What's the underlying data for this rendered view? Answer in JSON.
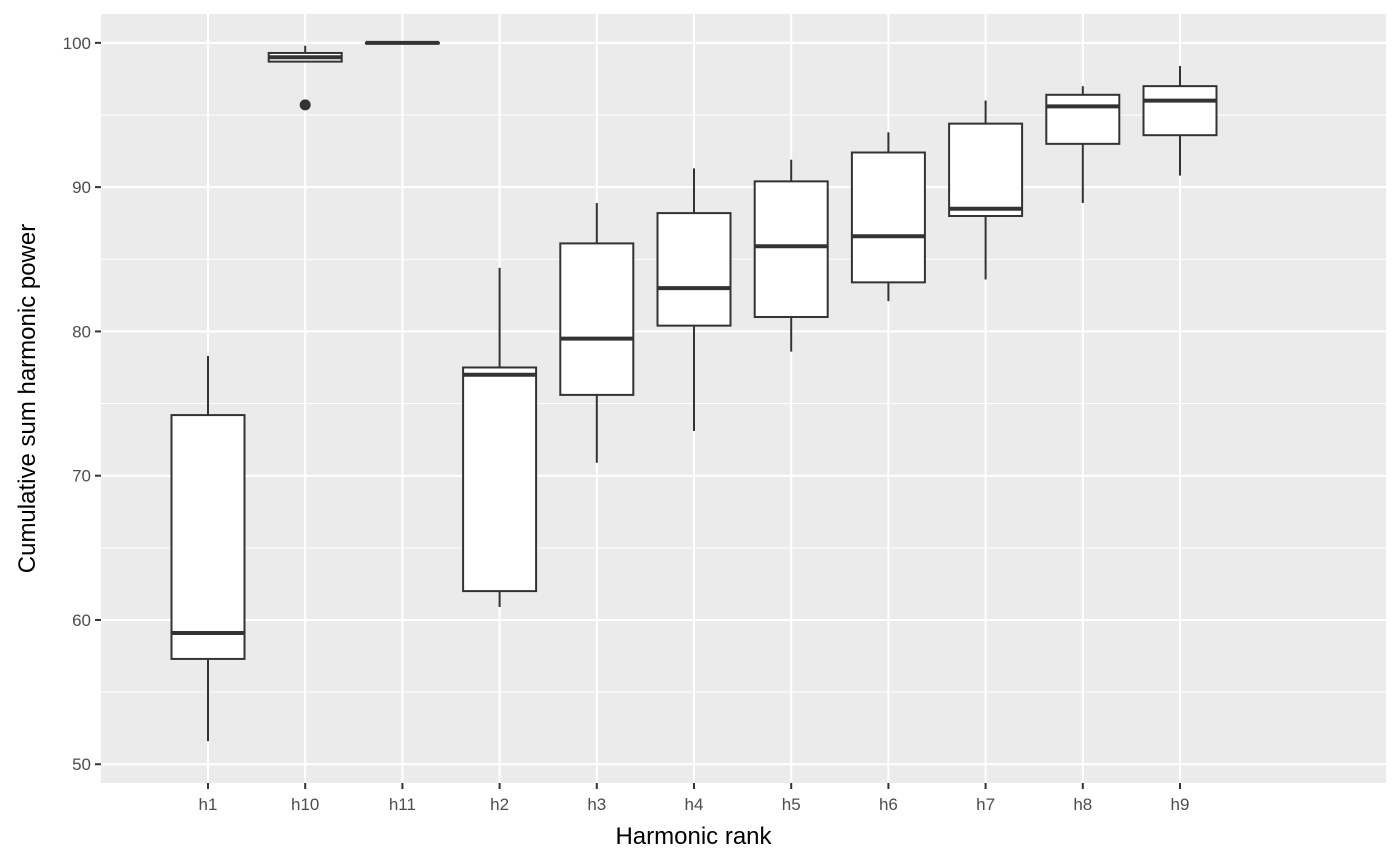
{
  "chart_data": {
    "type": "boxplot",
    "title": "",
    "xlabel": "Harmonic rank",
    "ylabel": "Cumulative sum harmonic power",
    "ylim": [
      48.7,
      102.0
    ],
    "yticks": [
      50,
      60,
      70,
      80,
      90,
      100
    ],
    "ytick_labels": [
      "50",
      "60",
      "70",
      "80",
      "90",
      "100"
    ],
    "grid": true,
    "legend": "none",
    "colors": {
      "panel": "#ebebeb",
      "grid": "#ffffff",
      "box_fill": "#ffffff",
      "box_stroke": "#333333",
      "tick_mark": "#333333"
    },
    "categories": [
      "h1",
      "h10",
      "h11",
      "h2",
      "h3",
      "h4",
      "h5",
      "h6",
      "h7",
      "h8",
      "h9"
    ],
    "boxes": [
      {
        "category": "h1",
        "whisker_low": 51.6,
        "q1": 57.3,
        "median": 59.1,
        "q3": 74.2,
        "whisker_high": 78.3,
        "outliers": []
      },
      {
        "category": "h10",
        "whisker_low": 98.7,
        "q1": 98.7,
        "median": 99.0,
        "q3": 99.3,
        "whisker_high": 99.8,
        "outliers": [
          95.7
        ]
      },
      {
        "category": "h11",
        "whisker_low": 100.0,
        "q1": 100.0,
        "median": 100.0,
        "q3": 100.0,
        "whisker_high": 100.0,
        "outliers": []
      },
      {
        "category": "h2",
        "whisker_low": 60.9,
        "q1": 62.0,
        "median": 77.0,
        "q3": 77.5,
        "whisker_high": 84.4,
        "outliers": []
      },
      {
        "category": "h3",
        "whisker_low": 70.9,
        "q1": 75.6,
        "median": 79.5,
        "q3": 86.1,
        "whisker_high": 88.9,
        "outliers": []
      },
      {
        "category": "h4",
        "whisker_low": 73.1,
        "q1": 80.4,
        "median": 83.0,
        "q3": 88.2,
        "whisker_high": 91.3,
        "outliers": []
      },
      {
        "category": "h5",
        "whisker_low": 78.6,
        "q1": 81.0,
        "median": 85.9,
        "q3": 90.4,
        "whisker_high": 91.9,
        "outliers": []
      },
      {
        "category": "h6",
        "whisker_low": 82.1,
        "q1": 83.4,
        "median": 86.6,
        "q3": 92.4,
        "whisker_high": 93.8,
        "outliers": []
      },
      {
        "category": "h7",
        "whisker_low": 83.6,
        "q1": 88.0,
        "median": 88.5,
        "q3": 94.4,
        "whisker_high": 96.0,
        "outliers": []
      },
      {
        "category": "h8",
        "whisker_low": 88.9,
        "q1": 93.0,
        "median": 95.6,
        "q3": 96.4,
        "whisker_high": 97.0,
        "outliers": []
      },
      {
        "category": "h9",
        "whisker_low": 90.8,
        "q1": 93.6,
        "median": 96.0,
        "q3": 97.0,
        "whisker_high": 98.4,
        "outliers": []
      }
    ]
  }
}
